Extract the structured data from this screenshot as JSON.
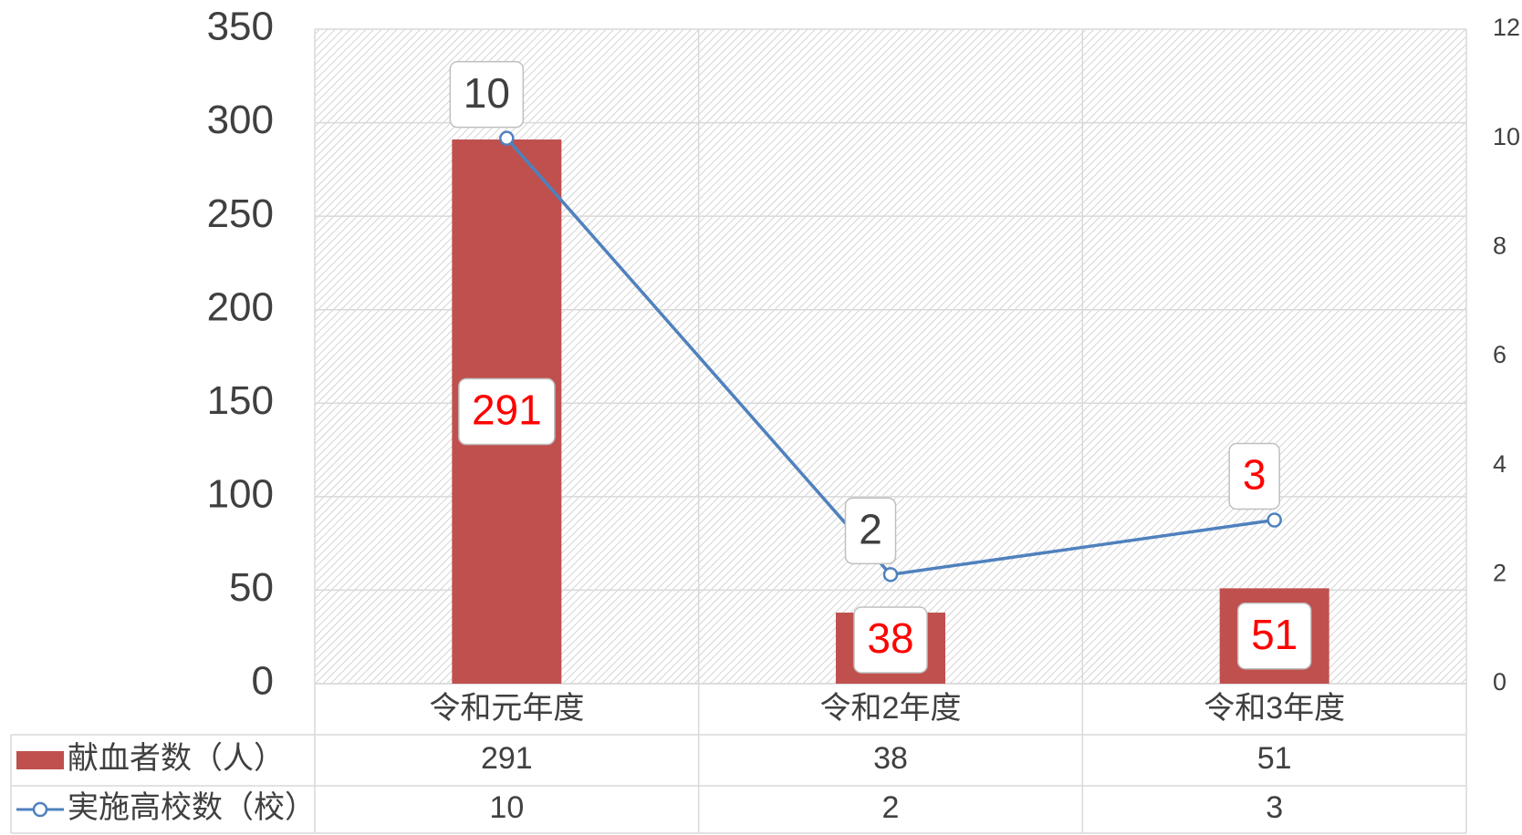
{
  "chart_data": {
    "type": "bar-line",
    "categories": [
      "令和元年度",
      "令和2年度",
      "令和3年度"
    ],
    "series": [
      {
        "name": "献血者数（人）",
        "color": "#c0504d",
        "type": "bar",
        "values": [
          291,
          38,
          51
        ],
        "value_label_colors": [
          "#ff0000",
          "#ff0000",
          "#ff0000"
        ]
      },
      {
        "name": "実施高校数（校）",
        "color": "#4f81bd",
        "type": "line",
        "axis": "y2",
        "values": [
          10,
          2,
          3
        ],
        "value_label_colors": [
          "#404040",
          "#404040",
          "#ff0000"
        ]
      }
    ],
    "ylim": [
      0,
      350
    ],
    "yticks": [
      0,
      50,
      100,
      150,
      200,
      250,
      300,
      350
    ],
    "y2lim": [
      0,
      12
    ],
    "y2ticks": [
      0,
      2,
      4,
      6,
      8,
      10,
      12
    ],
    "grid": true,
    "data_table": true
  }
}
